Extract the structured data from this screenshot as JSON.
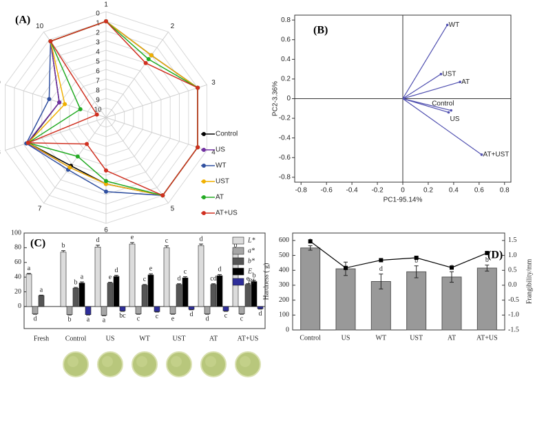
{
  "chart_data": [
    {
      "type": "radar",
      "panel": "(A)",
      "axes": [
        "1",
        "2",
        "3",
        "4",
        "5",
        "6",
        "7",
        "8",
        "9",
        "10"
      ],
      "rlim": [
        11,
        0
      ],
      "rticks": [
        0,
        1,
        2,
        3,
        4,
        5,
        6,
        7,
        8,
        9,
        10
      ],
      "legend": "right",
      "series": [
        {
          "name": "Control",
          "color": "#000000",
          "values": [
            1,
            3,
            1,
            1,
            1,
            4.1,
            4.8,
            2.5,
            5.9,
            1.2
          ]
        },
        {
          "name": "US",
          "color": "#7030a0",
          "values": [
            1,
            3,
            1,
            1,
            1,
            4.1,
            4.6,
            2.4,
            5.9,
            1.2
          ]
        },
        {
          "name": "WT",
          "color": "#3050a0",
          "values": [
            1,
            3,
            1,
            1,
            1,
            3.3,
            4.3,
            2.3,
            4.8,
            1.2
          ]
        },
        {
          "name": "UST",
          "color": "#f0b000",
          "values": [
            1,
            3,
            1,
            1,
            1,
            4.1,
            4.6,
            2.5,
            6.5,
            1.2
          ]
        },
        {
          "name": "AT",
          "color": "#22aa22",
          "values": [
            1,
            3.5,
            1,
            1,
            1,
            4.4,
            6,
            2.5,
            8.2,
            1.2
          ]
        },
        {
          "name": "AT+US",
          "color": "#d03020",
          "values": [
            1,
            4,
            1,
            1,
            1,
            5.5,
            7.6,
            2.5,
            10,
            1.2
          ]
        }
      ]
    },
    {
      "type": "biplot",
      "panel": "(B)",
      "xlabel": "PC1-95.14%",
      "ylabel": "PC2-3.36%",
      "xlim": [
        -0.85,
        0.85
      ],
      "ylim": [
        -0.85,
        0.85
      ],
      "xticks": [
        -0.8,
        -0.6,
        -0.4,
        -0.2,
        0,
        0.2,
        0.4,
        0.6,
        0.8
      ],
      "yticks": [
        -0.8,
        -0.6,
        -0.4,
        -0.2,
        0,
        0.2,
        0.4,
        0.6,
        0.8
      ],
      "color": "#5050b0",
      "points": [
        {
          "name": "WT",
          "x": 0.35,
          "y": 0.75
        },
        {
          "name": "UST",
          "x": 0.3,
          "y": 0.25
        },
        {
          "name": "AT",
          "x": 0.45,
          "y": 0.17
        },
        {
          "name": "Control",
          "x": 0.38,
          "y": -0.12
        },
        {
          "name": "US",
          "x": 0.36,
          "y": -0.14
        },
        {
          "name": "AT+UST",
          "x": 0.62,
          "y": -0.57
        }
      ]
    },
    {
      "type": "grouped-bar",
      "panel": "(C)",
      "categories": [
        "Fresh",
        "Control",
        "US",
        "WT",
        "UST",
        "AT",
        "AT+US"
      ],
      "ylim": [
        -30,
        100
      ],
      "yticks": [
        0,
        20,
        40,
        60,
        80,
        100
      ],
      "series": [
        {
          "name": "L*",
          "color": "#dcdcdc",
          "values": [
            44,
            74,
            81,
            85,
            80,
            83,
            75
          ],
          "errors": [
            1,
            2,
            2.5,
            2,
            2.5,
            2,
            1.5
          ],
          "letters": [
            "a",
            "b",
            "d",
            "e",
            "c",
            "d",
            "b"
          ]
        },
        {
          "name": "a*",
          "color": "#a6a6a6",
          "values": [
            -10,
            -11,
            -12,
            -10,
            -10,
            -10,
            -10
          ],
          "errors": [
            0.5,
            0.5,
            0.5,
            0.5,
            0.5,
            0.5,
            0.5
          ],
          "letters": [
            "d",
            "b",
            "a",
            "c",
            "e",
            "d",
            "c"
          ]
        },
        {
          "name": "b*",
          "color": "#555555",
          "values": [
            15,
            25,
            32,
            29,
            30,
            30,
            30
          ],
          "errors": [
            0.5,
            1,
            1,
            1,
            1,
            1,
            1
          ],
          "letters": [
            "a",
            "b",
            "e",
            "c",
            "d",
            "cd",
            "e"
          ]
        },
        {
          "name": "E",
          "color": "#000000",
          "values": [
            null,
            32,
            41,
            43,
            39,
            42,
            34
          ],
          "errors": [
            null,
            1.5,
            1.5,
            1.5,
            1.5,
            1.5,
            1.5
          ],
          "letters": [
            null,
            "a",
            "d",
            "e",
            "c",
            "d",
            "b"
          ]
        },
        {
          "name": "BI",
          "color": "#2e2e9a",
          "values": [
            null,
            -11,
            -6,
            -7,
            -4,
            -6,
            -3
          ],
          "errors": [
            null,
            0.5,
            0.5,
            0.5,
            0.5,
            0.5,
            0.5
          ],
          "letters": [
            null,
            "a",
            "bc",
            "c",
            "d",
            "c",
            "d"
          ]
        }
      ]
    },
    {
      "type": "bar-line",
      "panel": "(D)",
      "categories": [
        "Control",
        "US",
        "WT",
        "UST",
        "AT",
        "AT+US"
      ],
      "ylabel": "Hardness ( g)",
      "y2label": "Frangibility/mm",
      "ylim": [
        0,
        650
      ],
      "yticks": [
        0,
        100,
        200,
        300,
        400,
        500,
        600
      ],
      "y2lim": [
        -1.5,
        1.75
      ],
      "y2ticks": [
        -1.5,
        {
          "value": -1,
          "label": "-1.0"
        },
        -0.5,
        {
          "value": 0,
          "label": "0.0"
        },
        0.5,
        {
          "value": 1,
          "label": "1.0"
        },
        1.5
      ],
      "bars": {
        "color": "#999999",
        "values": [
          550,
          410,
          325,
          390,
          355,
          415
        ],
        "errors": [
          15,
          45,
          50,
          40,
          35,
          20
        ],
        "letters": [
          "a",
          null,
          "d",
          "b",
          "c",
          "b"
        ]
      },
      "line": {
        "axis": "y2",
        "color": "#000000",
        "values": [
          1.47,
          0.58,
          0.84,
          0.92,
          0.59,
          1.08
        ]
      }
    }
  ]
}
